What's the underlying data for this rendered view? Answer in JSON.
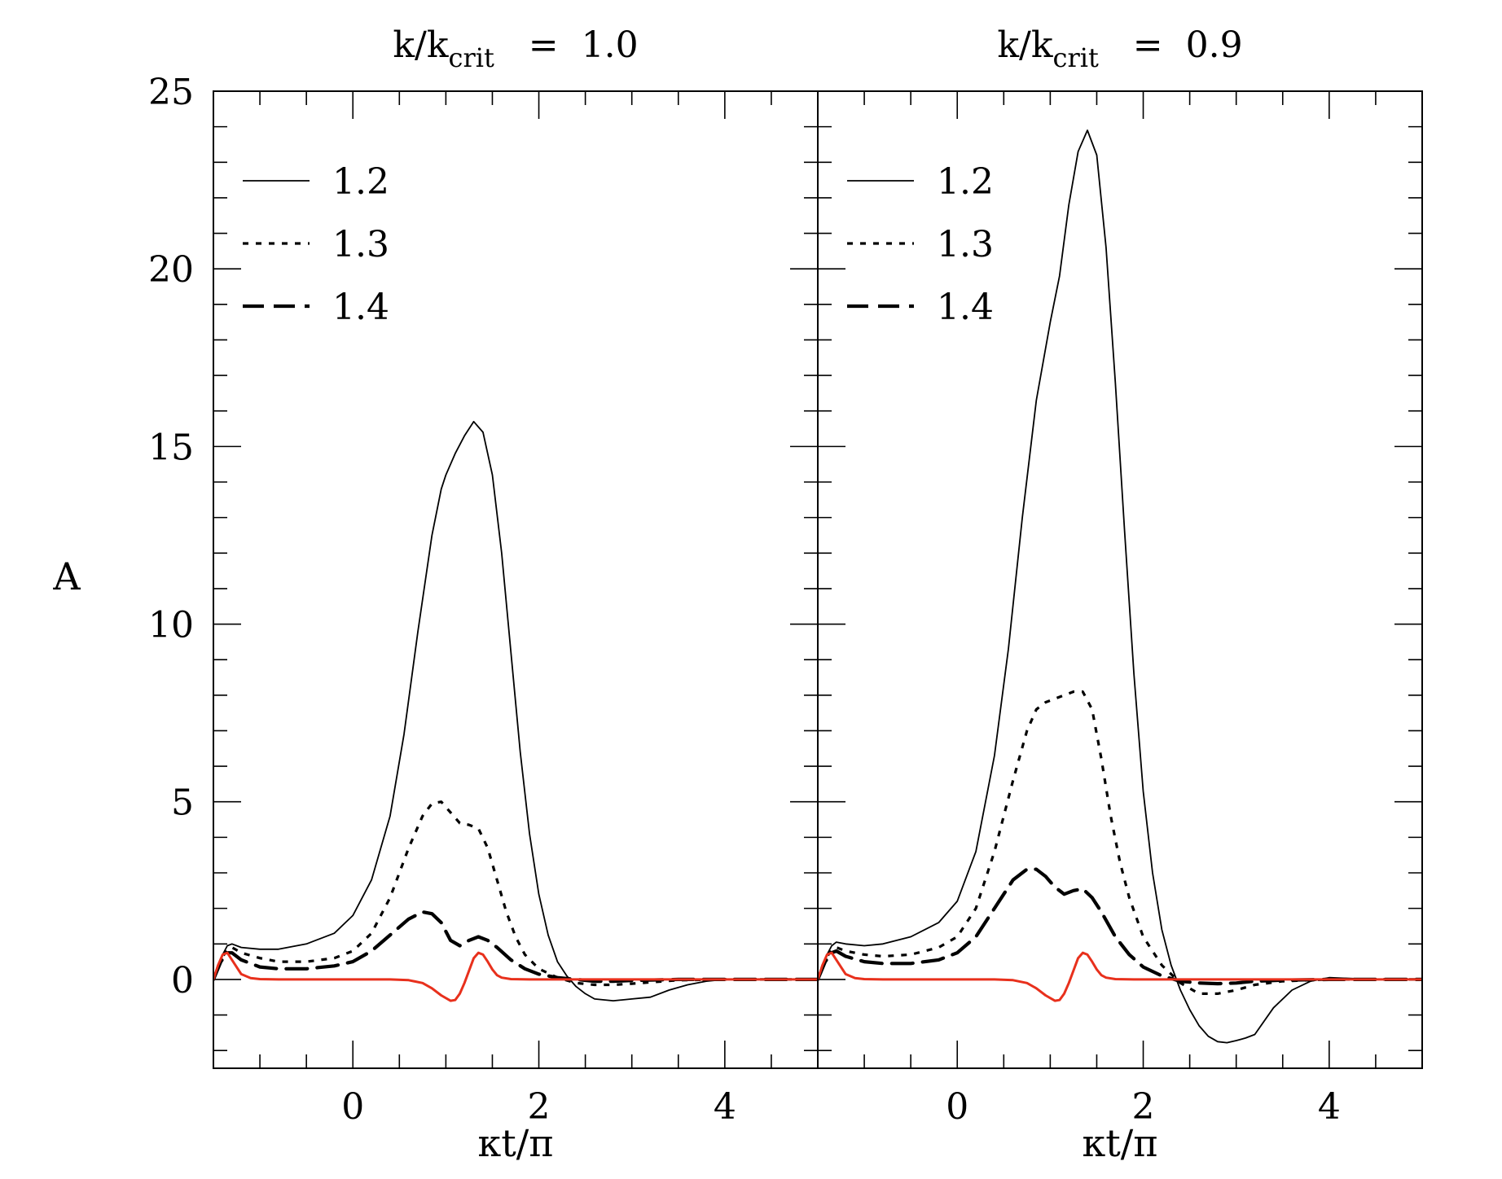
{
  "chart_data": [
    {
      "type": "line",
      "title_main": "k/k",
      "title_sub": "crit",
      "title_rest": " = 1.0",
      "xlabel": "κt/π",
      "ylabel": "A",
      "xlim": [
        -1.5,
        5
      ],
      "ylim": [
        -2.5,
        25
      ],
      "xticks": [
        0,
        2,
        4
      ],
      "yticks": [
        0,
        5,
        10,
        15,
        20,
        25
      ],
      "legend": {
        "position": "top-left",
        "entries": [
          "1.2",
          "1.3",
          "1.4"
        ]
      },
      "series": [
        {
          "name": "1.2",
          "style": "solid",
          "color": "#000000",
          "x": [
            -1.5,
            -1.42,
            -1.35,
            -1.3,
            -1.2,
            -1.0,
            -0.8,
            -0.5,
            -0.2,
            0.0,
            0.2,
            0.4,
            0.55,
            0.7,
            0.85,
            0.95,
            1.0,
            1.1,
            1.2,
            1.3,
            1.4,
            1.5,
            1.6,
            1.7,
            1.8,
            1.9,
            2.0,
            2.1,
            2.2,
            2.3,
            2.4,
            2.5,
            2.6,
            2.8,
            3.0,
            3.2,
            3.4,
            3.6,
            3.8,
            4.0,
            4.5,
            5.0
          ],
          "y": [
            0,
            0.6,
            0.95,
            1.0,
            0.9,
            0.85,
            0.85,
            1.0,
            1.3,
            1.8,
            2.8,
            4.6,
            6.9,
            9.8,
            12.5,
            13.8,
            14.2,
            14.8,
            15.3,
            15.7,
            15.4,
            14.2,
            12.0,
            9.2,
            6.4,
            4.1,
            2.4,
            1.25,
            0.5,
            0.1,
            -0.2,
            -0.4,
            -0.55,
            -0.6,
            -0.55,
            -0.5,
            -0.3,
            -0.15,
            -0.05,
            0,
            0,
            0
          ]
        },
        {
          "name": "1.3",
          "style": "dotted",
          "color": "#000000",
          "x": [
            -1.5,
            -1.42,
            -1.35,
            -1.3,
            -1.2,
            -1.0,
            -0.8,
            -0.5,
            -0.2,
            0.0,
            0.2,
            0.4,
            0.6,
            0.75,
            0.85,
            0.95,
            1.05,
            1.15,
            1.25,
            1.35,
            1.45,
            1.55,
            1.65,
            1.75,
            1.85,
            2.0,
            2.2,
            2.4,
            2.6,
            2.8,
            3.0,
            3.2,
            3.5,
            4.0,
            5.0
          ],
          "y": [
            0,
            0.55,
            0.85,
            0.9,
            0.75,
            0.6,
            0.5,
            0.5,
            0.6,
            0.8,
            1.3,
            2.3,
            3.7,
            4.6,
            4.95,
            5.0,
            4.7,
            4.4,
            4.35,
            4.25,
            3.7,
            2.8,
            1.9,
            1.2,
            0.7,
            0.3,
            0.05,
            -0.1,
            -0.15,
            -0.15,
            -0.12,
            -0.08,
            -0.02,
            0,
            0
          ]
        },
        {
          "name": "1.4",
          "style": "dashed",
          "color": "#000000",
          "x": [
            -1.5,
            -1.42,
            -1.35,
            -1.3,
            -1.2,
            -1.0,
            -0.8,
            -0.5,
            -0.2,
            0.0,
            0.2,
            0.4,
            0.6,
            0.75,
            0.85,
            0.95,
            1.05,
            1.15,
            1.25,
            1.35,
            1.45,
            1.55,
            1.7,
            1.85,
            2.0,
            2.2,
            2.4,
            2.6,
            2.8,
            3.0,
            3.5,
            4.0,
            5.0
          ],
          "y": [
            0,
            0.5,
            0.75,
            0.75,
            0.55,
            0.35,
            0.3,
            0.3,
            0.38,
            0.5,
            0.8,
            1.25,
            1.7,
            1.9,
            1.85,
            1.6,
            1.1,
            0.95,
            1.1,
            1.2,
            1.1,
            0.9,
            0.55,
            0.3,
            0.15,
            0.05,
            0,
            -0.05,
            -0.05,
            -0.03,
            0,
            0,
            0
          ]
        },
        {
          "name": "red",
          "style": "solid",
          "color": "#e8301c",
          "x": [
            -1.5,
            -1.45,
            -1.4,
            -1.35,
            -1.3,
            -1.2,
            -1.1,
            -1.0,
            -0.8,
            0.0,
            0.4,
            0.6,
            0.75,
            0.85,
            0.95,
            1.05,
            1.1,
            1.15,
            1.2,
            1.25,
            1.3,
            1.35,
            1.4,
            1.45,
            1.5,
            1.55,
            1.6,
            1.7,
            1.9,
            2.5,
            5.0
          ],
          "y": [
            0,
            0.4,
            0.7,
            0.75,
            0.55,
            0.15,
            0.04,
            0.01,
            0,
            0,
            0,
            -0.02,
            -0.1,
            -0.25,
            -0.45,
            -0.6,
            -0.58,
            -0.4,
            -0.1,
            0.25,
            0.6,
            0.75,
            0.7,
            0.5,
            0.28,
            0.12,
            0.05,
            0.01,
            0,
            0,
            0
          ]
        }
      ]
    },
    {
      "type": "line",
      "title_main": "k/k",
      "title_sub": "crit",
      "title_rest": " = 0.9",
      "xlabel": "κt/π",
      "ylabel": "A",
      "xlim": [
        -1.5,
        5
      ],
      "ylim": [
        -2.5,
        25
      ],
      "xticks": [
        0,
        2,
        4
      ],
      "yticks": [
        0,
        5,
        10,
        15,
        20,
        25
      ],
      "legend": {
        "position": "top-left",
        "entries": [
          "1.2",
          "1.3",
          "1.4"
        ]
      },
      "series": [
        {
          "name": "1.2",
          "style": "solid",
          "color": "#000000",
          "x": [
            -1.5,
            -1.42,
            -1.35,
            -1.3,
            -1.2,
            -1.0,
            -0.8,
            -0.5,
            -0.2,
            0.0,
            0.2,
            0.4,
            0.55,
            0.7,
            0.85,
            1.0,
            1.1,
            1.2,
            1.3,
            1.4,
            1.5,
            1.6,
            1.7,
            1.8,
            1.9,
            2.0,
            2.1,
            2.2,
            2.3,
            2.4,
            2.5,
            2.6,
            2.7,
            2.8,
            2.9,
            3.0,
            3.1,
            3.2,
            3.4,
            3.6,
            3.8,
            4.0,
            4.5,
            5.0
          ],
          "y": [
            0,
            0.6,
            0.95,
            1.05,
            1.0,
            0.95,
            1.0,
            1.2,
            1.6,
            2.2,
            3.6,
            6.3,
            9.3,
            13.0,
            16.3,
            18.5,
            19.8,
            21.8,
            23.3,
            23.9,
            23.2,
            20.6,
            16.8,
            12.6,
            8.6,
            5.3,
            3.0,
            1.4,
            0.4,
            -0.3,
            -0.85,
            -1.3,
            -1.6,
            -1.75,
            -1.78,
            -1.72,
            -1.65,
            -1.55,
            -0.8,
            -0.3,
            -0.05,
            0.05,
            0,
            0
          ]
        },
        {
          "name": "1.3",
          "style": "dotted",
          "color": "#000000",
          "x": [
            -1.5,
            -1.42,
            -1.35,
            -1.3,
            -1.2,
            -1.0,
            -0.8,
            -0.5,
            -0.2,
            0.0,
            0.2,
            0.4,
            0.6,
            0.75,
            0.85,
            0.95,
            1.05,
            1.15,
            1.25,
            1.35,
            1.45,
            1.55,
            1.65,
            1.75,
            1.85,
            2.0,
            2.2,
            2.4,
            2.6,
            2.8,
            3.0,
            3.2,
            3.5,
            4.0,
            5.0
          ],
          "y": [
            0,
            0.55,
            0.85,
            0.9,
            0.8,
            0.7,
            0.65,
            0.7,
            0.9,
            1.2,
            2.0,
            3.6,
            5.6,
            7.0,
            7.6,
            7.8,
            7.9,
            8.0,
            8.1,
            8.1,
            7.6,
            6.2,
            4.6,
            3.3,
            2.3,
            1.2,
            0.4,
            -0.1,
            -0.4,
            -0.4,
            -0.3,
            -0.15,
            -0.05,
            0,
            0
          ]
        },
        {
          "name": "1.4",
          "style": "dashed",
          "color": "#000000",
          "x": [
            -1.5,
            -1.42,
            -1.35,
            -1.3,
            -1.2,
            -1.0,
            -0.8,
            -0.5,
            -0.2,
            0.0,
            0.2,
            0.4,
            0.6,
            0.75,
            0.85,
            0.95,
            1.05,
            1.15,
            1.25,
            1.35,
            1.45,
            1.55,
            1.7,
            1.85,
            2.0,
            2.2,
            2.4,
            2.6,
            2.8,
            3.0,
            3.2,
            3.5,
            4.0,
            5.0
          ],
          "y": [
            0,
            0.5,
            0.75,
            0.8,
            0.65,
            0.5,
            0.45,
            0.45,
            0.55,
            0.75,
            1.2,
            2.0,
            2.8,
            3.1,
            3.1,
            2.9,
            2.6,
            2.4,
            2.5,
            2.55,
            2.3,
            1.9,
            1.2,
            0.7,
            0.35,
            0.1,
            -0.05,
            -0.1,
            -0.12,
            -0.1,
            -0.05,
            -0.02,
            0,
            0
          ]
        },
        {
          "name": "red",
          "style": "solid",
          "color": "#e8301c",
          "x": [
            -1.5,
            -1.45,
            -1.4,
            -1.35,
            -1.3,
            -1.2,
            -1.1,
            -1.0,
            -0.8,
            0.0,
            0.4,
            0.6,
            0.75,
            0.85,
            0.95,
            1.05,
            1.1,
            1.15,
            1.2,
            1.25,
            1.3,
            1.35,
            1.4,
            1.45,
            1.5,
            1.55,
            1.6,
            1.7,
            1.9,
            2.5,
            5.0
          ],
          "y": [
            0,
            0.4,
            0.7,
            0.75,
            0.55,
            0.15,
            0.04,
            0.01,
            0,
            0,
            0,
            -0.02,
            -0.1,
            -0.25,
            -0.45,
            -0.6,
            -0.58,
            -0.4,
            -0.1,
            0.25,
            0.6,
            0.75,
            0.7,
            0.5,
            0.28,
            0.12,
            0.05,
            0.01,
            0,
            0,
            0
          ]
        }
      ]
    }
  ]
}
